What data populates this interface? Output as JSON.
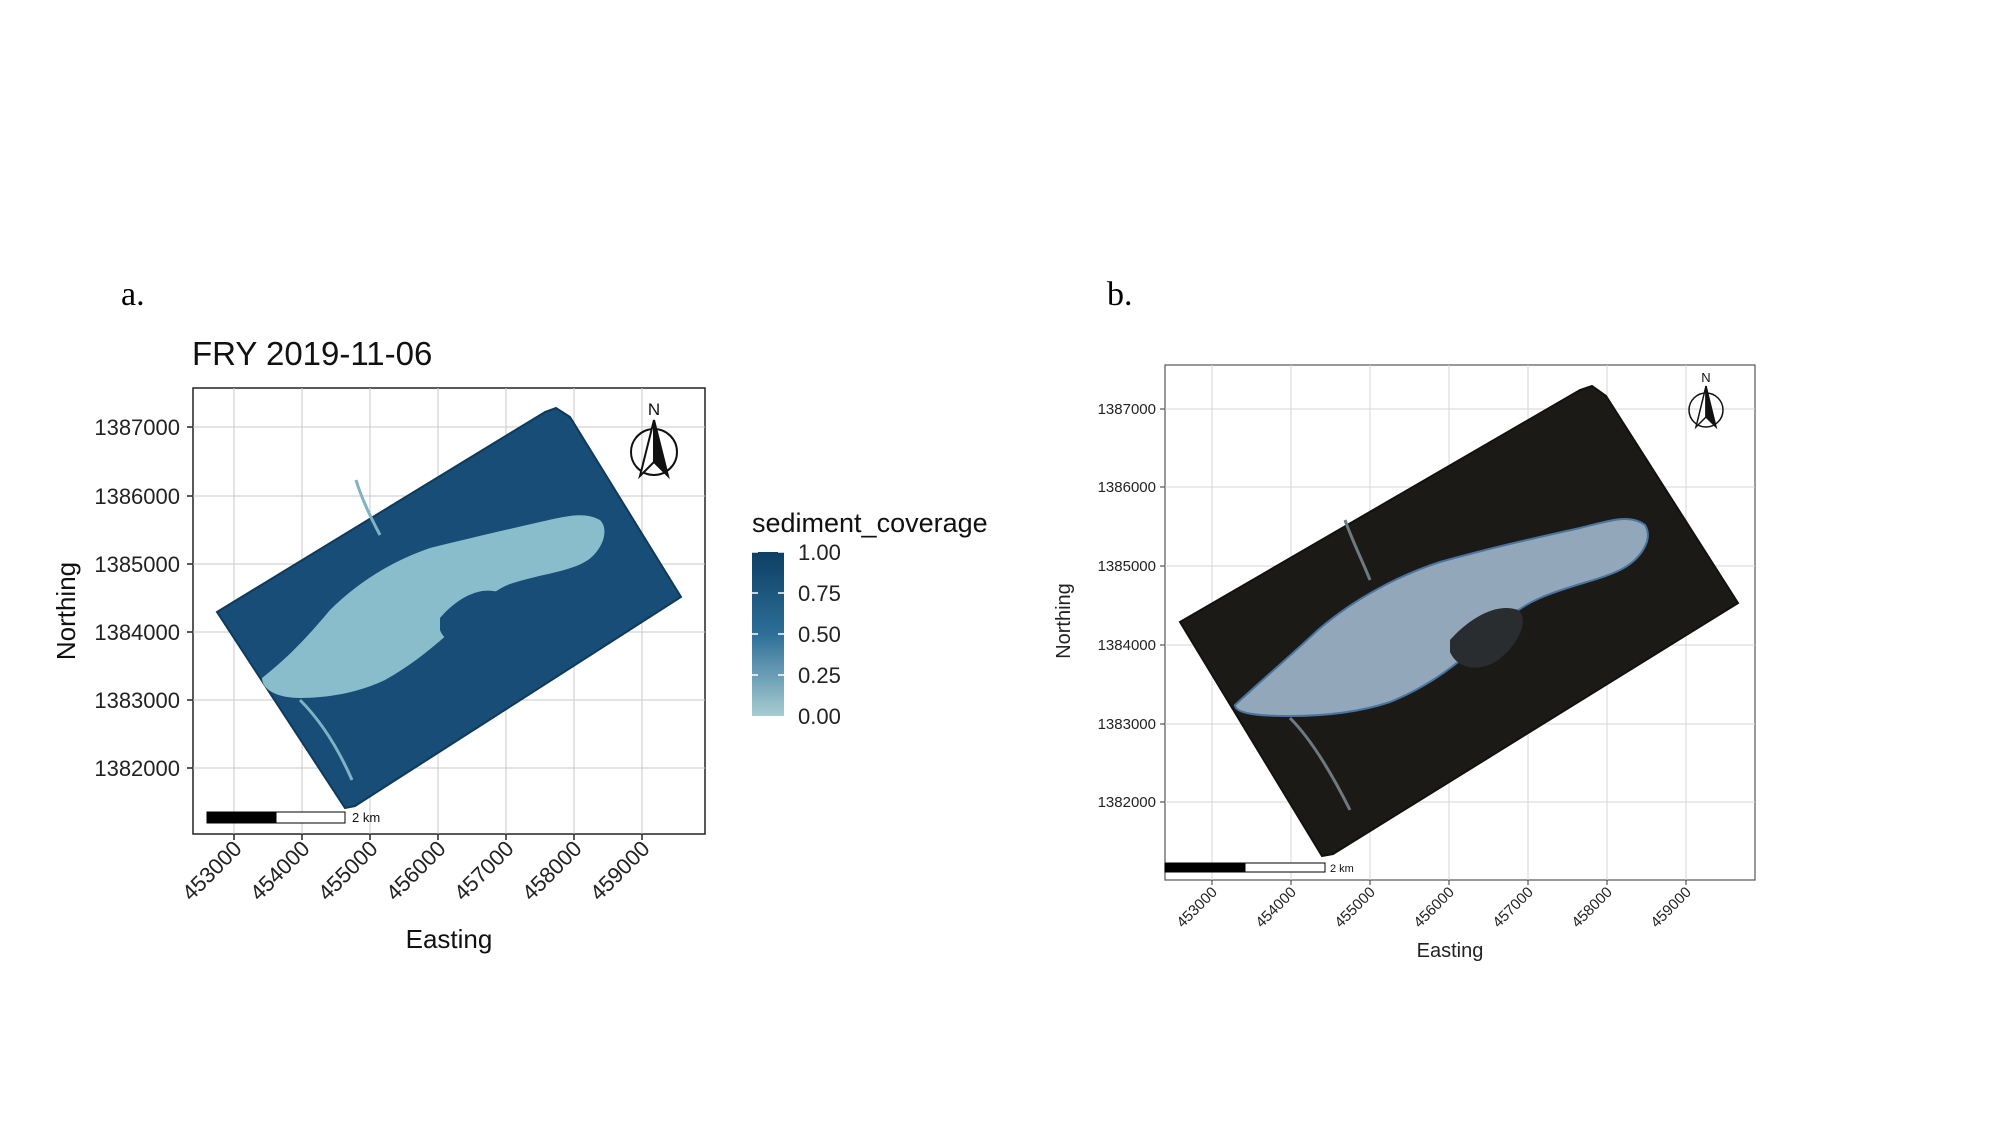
{
  "panels": [
    {
      "letter": "a.",
      "title": "FRY 2019-11-06",
      "xlabel": "Easting",
      "ylabel": "Northing",
      "xticks": [
        "453000",
        "454000",
        "455000",
        "456000",
        "457000",
        "458000",
        "459000"
      ],
      "yticks": [
        "1387000",
        "1386000",
        "1385000",
        "1384000",
        "1383000",
        "1382000"
      ],
      "north_label": "N",
      "scale_label": "2 km",
      "legend": {
        "title": "sediment_coverage",
        "labels": [
          "1.00",
          "0.75",
          "0.50",
          "0.25",
          "0.00"
        ],
        "color_high": "#0d3f63",
        "color_low": "#a7ccd2"
      }
    },
    {
      "letter": "b.",
      "title": "",
      "xlabel": "Easting",
      "ylabel": "Northing",
      "xticks": [
        "453000",
        "454000",
        "455000",
        "456000",
        "457000",
        "458000",
        "459000"
      ],
      "yticks": [
        "1387000",
        "1386000",
        "1385000",
        "1384000",
        "1383000",
        "1382000"
      ],
      "north_label": "N",
      "scale_label": "2 km"
    }
  ],
  "colors": {
    "raster_a": "#174d76",
    "sediment_a": "#8fc3d0",
    "raster_b": "#1c1a17",
    "sediment_b": "#9fb8cc"
  }
}
